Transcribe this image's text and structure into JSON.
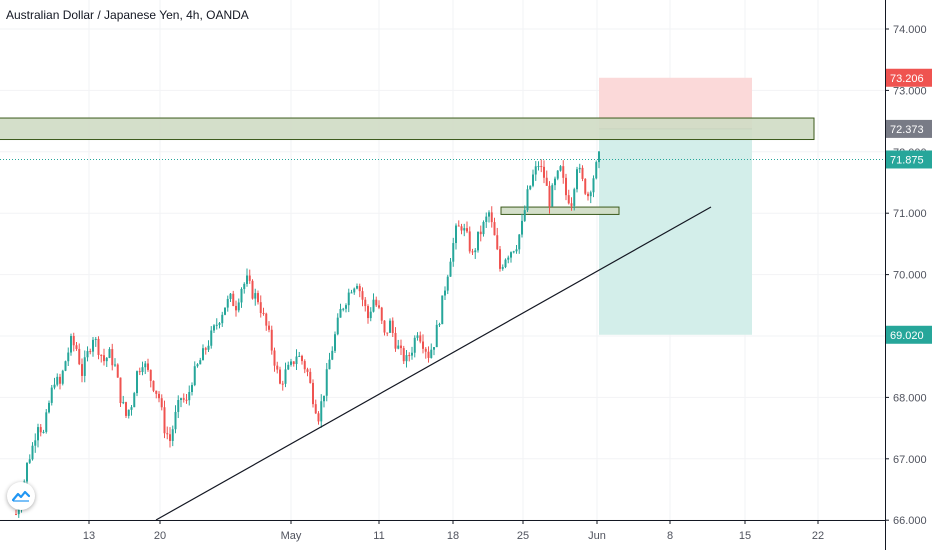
{
  "header": {
    "title": "Australian Dollar / Japanese Yen, 4h, OANDA"
  },
  "chart_data": {
    "type": "candlestick",
    "symbol": "Australian Dollar / Japanese Yen",
    "interval": "4h",
    "source": "OANDA",
    "ylim": [
      65.9,
      74.6
    ],
    "y_ticks": [
      "74.000",
      "73.000",
      "72.000",
      "71.000",
      "70.000",
      "69.000",
      "68.000",
      "67.000",
      "66.000"
    ],
    "x_ticks": [
      "13",
      "20",
      "May",
      "11",
      "18",
      "25",
      "Jun",
      "8",
      "15",
      "22"
    ],
    "price_labels": [
      {
        "label": "73.206",
        "value": 73.206,
        "color": "#ef5350",
        "role": "stop-loss"
      },
      {
        "label": "72.373",
        "value": 72.373,
        "color": "#787b86",
        "role": "resistance-zone"
      },
      {
        "label": "71.875",
        "value": 71.875,
        "color": "#26a69a",
        "role": "last-price"
      },
      {
        "label": "69.020",
        "value": 69.02,
        "color": "#26a69a",
        "role": "take-profit"
      }
    ],
    "price_path": [
      [
        0,
        66.1
      ],
      [
        2,
        66.4
      ],
      [
        4,
        66.9
      ],
      [
        6,
        67.2
      ],
      [
        8,
        67.6
      ],
      [
        10,
        67.4
      ],
      [
        12,
        67.9
      ],
      [
        14,
        68.3
      ],
      [
        16,
        68.2
      ],
      [
        18,
        68.6
      ],
      [
        20,
        68.9
      ],
      [
        22,
        68.8
      ],
      [
        24,
        68.4
      ],
      [
        26,
        68.7
      ],
      [
        28,
        69.0
      ],
      [
        30,
        68.8
      ],
      [
        32,
        68.6
      ],
      [
        34,
        68.7
      ],
      [
        36,
        68.5
      ],
      [
        38,
        68.0
      ],
      [
        40,
        67.7
      ],
      [
        42,
        67.9
      ],
      [
        44,
        68.4
      ],
      [
        46,
        68.6
      ],
      [
        48,
        68.4
      ],
      [
        50,
        68.2
      ],
      [
        52,
        68.0
      ],
      [
        54,
        67.5
      ],
      [
        56,
        67.3
      ],
      [
        58,
        67.7
      ],
      [
        60,
        68.0
      ],
      [
        62,
        67.9
      ],
      [
        64,
        68.3
      ],
      [
        66,
        68.5
      ],
      [
        68,
        68.7
      ],
      [
        70,
        68.9
      ],
      [
        72,
        69.1
      ],
      [
        74,
        69.3
      ],
      [
        76,
        69.5
      ],
      [
        78,
        69.6
      ],
      [
        80,
        69.5
      ],
      [
        82,
        69.8
      ],
      [
        84,
        69.9
      ],
      [
        86,
        69.7
      ],
      [
        88,
        69.6
      ],
      [
        90,
        69.3
      ],
      [
        92,
        69.0
      ],
      [
        94,
        68.6
      ],
      [
        96,
        68.2
      ],
      [
        98,
        68.4
      ],
      [
        100,
        68.5
      ],
      [
        102,
        68.7
      ],
      [
        104,
        68.6
      ],
      [
        106,
        68.4
      ],
      [
        108,
        68.0
      ],
      [
        110,
        67.7
      ],
      [
        112,
        68.1
      ],
      [
        114,
        68.6
      ],
      [
        116,
        69.0
      ],
      [
        118,
        69.4
      ],
      [
        120,
        69.6
      ],
      [
        122,
        69.8
      ],
      [
        124,
        69.9
      ],
      [
        126,
        69.6
      ],
      [
        128,
        69.3
      ],
      [
        130,
        69.6
      ],
      [
        132,
        69.4
      ],
      [
        134,
        69.0
      ],
      [
        136,
        69.2
      ],
      [
        138,
        68.9
      ],
      [
        140,
        68.7
      ],
      [
        142,
        68.6
      ],
      [
        144,
        68.8
      ],
      [
        146,
        69.1
      ],
      [
        148,
        68.9
      ],
      [
        150,
        68.7
      ],
      [
        152,
        68.9
      ],
      [
        154,
        69.3
      ],
      [
        156,
        69.8
      ],
      [
        158,
        70.3
      ],
      [
        160,
        70.7
      ],
      [
        162,
        70.8
      ],
      [
        164,
        70.6
      ],
      [
        166,
        70.3
      ],
      [
        168,
        70.6
      ],
      [
        170,
        70.8
      ],
      [
        172,
        71.0
      ],
      [
        174,
        70.6
      ],
      [
        176,
        70.1
      ],
      [
        178,
        70.3
      ],
      [
        180,
        70.4
      ],
      [
        182,
        70.5
      ],
      [
        184,
        70.8
      ],
      [
        186,
        71.3
      ],
      [
        188,
        71.6
      ],
      [
        190,
        71.8
      ],
      [
        192,
        71.6
      ],
      [
        194,
        71.2
      ],
      [
        196,
        71.5
      ],
      [
        198,
        71.7
      ],
      [
        200,
        71.3
      ],
      [
        202,
        71.2
      ],
      [
        204,
        71.8
      ],
      [
        206,
        71.5
      ],
      [
        208,
        71.3
      ],
      [
        210,
        71.6
      ],
      [
        212,
        71.9
      ]
    ],
    "annotations": {
      "upper_zone": {
        "from": 72.2,
        "to": 72.55
      },
      "small_zone": {
        "from": 70.98,
        "to": 71.1
      },
      "trendline": "rising support line drawn under the lows",
      "position": {
        "side": "short",
        "entry": 72.373,
        "stop": 73.206,
        "target": 69.02
      }
    },
    "colors": {
      "up": "#26a69a",
      "down": "#ef5350",
      "zone_fill": "#cfdcc4",
      "zone_border": "#3b5a1b",
      "stop_fill": "#fbd9d9",
      "target_fill": "#d3eeea",
      "grid": "#f2f3f5"
    }
  }
}
